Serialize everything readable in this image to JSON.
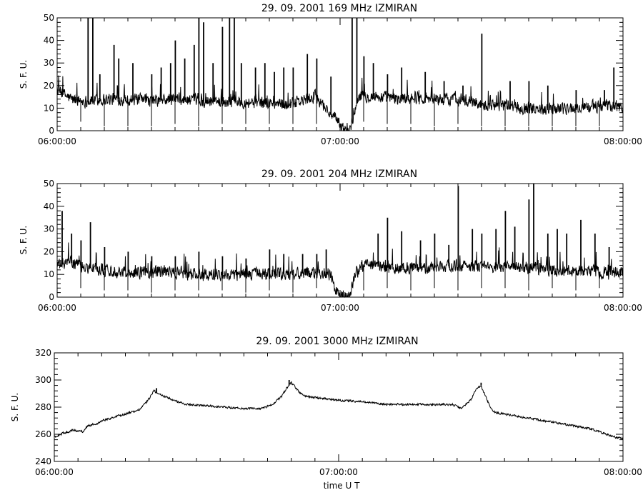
{
  "xlabel": "time   U T",
  "chart_data": [
    {
      "type": "line",
      "title": "29.  09. 2001    169 MHz    IZMIRAN",
      "ylabel": "S. F. U.",
      "x_tick_labels": [
        "06:00:00",
        "07:00:00",
        "08:00:00"
      ],
      "xlim_minutes": [
        0,
        120
      ],
      "ylim": [
        0,
        50
      ],
      "y_ticks": [
        0,
        10,
        20,
        30,
        40,
        50
      ],
      "baseline": [
        [
          0,
          18
        ],
        [
          3,
          14
        ],
        [
          6,
          13
        ],
        [
          10,
          14
        ],
        [
          15,
          14
        ],
        [
          20,
          13
        ],
        [
          25,
          14
        ],
        [
          30,
          13
        ],
        [
          35,
          13
        ],
        [
          40,
          13
        ],
        [
          45,
          12
        ],
        [
          50,
          12
        ],
        [
          55,
          15
        ],
        [
          59,
          5
        ],
        [
          61,
          0
        ],
        [
          62,
          0
        ],
        [
          64,
          16
        ],
        [
          68,
          15
        ],
        [
          72,
          14
        ],
        [
          76,
          15
        ],
        [
          80,
          14
        ],
        [
          85,
          14
        ],
        [
          90,
          12
        ],
        [
          95,
          11
        ],
        [
          100,
          10
        ],
        [
          105,
          10
        ],
        [
          110,
          10
        ],
        [
          115,
          11
        ],
        [
          120,
          11
        ]
      ],
      "noise": 2.5,
      "spikes": [
        [
          6.5,
          50
        ],
        [
          7.5,
          50
        ],
        [
          9,
          25
        ],
        [
          12,
          38
        ],
        [
          13,
          32
        ],
        [
          16,
          30
        ],
        [
          20,
          25
        ],
        [
          22,
          28
        ],
        [
          24,
          30
        ],
        [
          25,
          40
        ],
        [
          27,
          32
        ],
        [
          29,
          38
        ],
        [
          30,
          50
        ],
        [
          31,
          48
        ],
        [
          33,
          30
        ],
        [
          35,
          46
        ],
        [
          36.5,
          50
        ],
        [
          37.5,
          50
        ],
        [
          39,
          30
        ],
        [
          42,
          28
        ],
        [
          44,
          30
        ],
        [
          46,
          26
        ],
        [
          48,
          28
        ],
        [
          50,
          28
        ],
        [
          53,
          34
        ],
        [
          55,
          32
        ],
        [
          58,
          24
        ],
        [
          62.5,
          50
        ],
        [
          63.5,
          50
        ],
        [
          65,
          33
        ],
        [
          67,
          30
        ],
        [
          70,
          25
        ],
        [
          73,
          28
        ],
        [
          78,
          26
        ],
        [
          82,
          22
        ],
        [
          86,
          20
        ],
        [
          90,
          43
        ],
        [
          96,
          22
        ],
        [
          100,
          22
        ],
        [
          104,
          20
        ],
        [
          110,
          18
        ],
        [
          116,
          18
        ],
        [
          118,
          28
        ]
      ],
      "dips": [
        [
          5,
          4
        ],
        [
          10,
          2
        ],
        [
          15,
          2
        ],
        [
          20,
          2
        ],
        [
          25,
          3
        ],
        [
          30,
          2
        ],
        [
          35,
          3
        ],
        [
          40,
          3
        ],
        [
          45,
          3
        ],
        [
          50,
          3
        ],
        [
          55,
          3
        ],
        [
          65,
          4
        ],
        [
          70,
          3
        ],
        [
          75,
          3
        ],
        [
          80,
          2
        ],
        [
          85,
          3
        ],
        [
          90,
          2
        ],
        [
          95,
          2
        ],
        [
          100,
          2
        ],
        [
          105,
          2
        ],
        [
          110,
          2
        ],
        [
          115,
          2
        ]
      ]
    },
    {
      "type": "line",
      "title": "29.  09. 2001    204 MHz    IZMIRAN",
      "ylabel": "S. F. U.",
      "x_tick_labels": [
        "06:00:00",
        "07:00:00",
        "08:00:00"
      ],
      "xlim_minutes": [
        0,
        120
      ],
      "ylim": [
        0,
        50
      ],
      "y_ticks": [
        0,
        10,
        20,
        30,
        40,
        50
      ],
      "baseline": [
        [
          0,
          14
        ],
        [
          3,
          15
        ],
        [
          6,
          13
        ],
        [
          10,
          12
        ],
        [
          15,
          11
        ],
        [
          20,
          11
        ],
        [
          25,
          11
        ],
        [
          30,
          10
        ],
        [
          35,
          10
        ],
        [
          40,
          10
        ],
        [
          45,
          10
        ],
        [
          50,
          10
        ],
        [
          55,
          11
        ],
        [
          58,
          10
        ],
        [
          59,
          3
        ],
        [
          60,
          0
        ],
        [
          62,
          0
        ],
        [
          63,
          10
        ],
        [
          65,
          14
        ],
        [
          70,
          13
        ],
        [
          75,
          13
        ],
        [
          80,
          13
        ],
        [
          85,
          14
        ],
        [
          90,
          13
        ],
        [
          95,
          13
        ],
        [
          100,
          13
        ],
        [
          105,
          12
        ],
        [
          110,
          12
        ],
        [
          115,
          11
        ],
        [
          120,
          11
        ]
      ],
      "noise": 2.5,
      "spikes": [
        [
          1,
          38
        ],
        [
          3,
          28
        ],
        [
          5,
          25
        ],
        [
          7,
          33
        ],
        [
          10,
          22
        ],
        [
          15,
          20
        ],
        [
          20,
          18
        ],
        [
          25,
          18
        ],
        [
          30,
          20
        ],
        [
          35,
          18
        ],
        [
          40,
          17
        ],
        [
          45,
          21
        ],
        [
          48,
          19
        ],
        [
          52,
          19
        ],
        [
          55,
          19
        ],
        [
          57,
          21
        ],
        [
          68,
          28
        ],
        [
          70,
          35
        ],
        [
          73,
          29
        ],
        [
          77,
          25
        ],
        [
          80,
          28
        ],
        [
          83,
          23
        ],
        [
          85,
          49
        ],
        [
          88,
          30
        ],
        [
          90,
          28
        ],
        [
          93,
          30
        ],
        [
          95,
          38
        ],
        [
          97,
          31
        ],
        [
          100,
          43
        ],
        [
          101,
          50
        ],
        [
          104,
          28
        ],
        [
          106,
          30
        ],
        [
          108,
          28
        ],
        [
          111,
          34
        ],
        [
          114,
          28
        ],
        [
          117,
          22
        ]
      ],
      "dips": [
        [
          5,
          4
        ],
        [
          10,
          3
        ],
        [
          15,
          3
        ],
        [
          20,
          2
        ],
        [
          25,
          3
        ],
        [
          30,
          3
        ],
        [
          35,
          3
        ],
        [
          40,
          2
        ],
        [
          45,
          3
        ],
        [
          50,
          2
        ],
        [
          55,
          4
        ],
        [
          65,
          3
        ],
        [
          70,
          4
        ],
        [
          75,
          3
        ],
        [
          80,
          4
        ],
        [
          85,
          3
        ],
        [
          90,
          4
        ],
        [
          95,
          4
        ],
        [
          100,
          3
        ],
        [
          105,
          4
        ],
        [
          110,
          3
        ],
        [
          115,
          4
        ]
      ]
    },
    {
      "type": "line",
      "title": "29.  09. 2001    3000 MHz    IZMIRAN",
      "ylabel": "S. F. U.",
      "x_tick_labels": [
        "06:00:00",
        "07:00:00",
        "08:00:00"
      ],
      "xlim_minutes": [
        0,
        120
      ],
      "ylim": [
        240,
        320
      ],
      "y_ticks": [
        240,
        260,
        280,
        300,
        320
      ],
      "baseline": [
        [
          0,
          258
        ],
        [
          2,
          261
        ],
        [
          4,
          263
        ],
        [
          6,
          262
        ],
        [
          7,
          266
        ],
        [
          9,
          268
        ],
        [
          10,
          270
        ],
        [
          12,
          272
        ],
        [
          14,
          274
        ],
        [
          16,
          276
        ],
        [
          18,
          278
        ],
        [
          19,
          282
        ],
        [
          20,
          286
        ],
        [
          21,
          292
        ],
        [
          22,
          290
        ],
        [
          23,
          288
        ],
        [
          24,
          287
        ],
        [
          26,
          284
        ],
        [
          28,
          282
        ],
        [
          32,
          281
        ],
        [
          36,
          280
        ],
        [
          40,
          279
        ],
        [
          44,
          279
        ],
        [
          46,
          282
        ],
        [
          48,
          288
        ],
        [
          49,
          294
        ],
        [
          50,
          298
        ],
        [
          51,
          294
        ],
        [
          52,
          290
        ],
        [
          53,
          288
        ],
        [
          55,
          287
        ],
        [
          60,
          285
        ],
        [
          65,
          284
        ],
        [
          70,
          282
        ],
        [
          75,
          282
        ],
        [
          80,
          282
        ],
        [
          84,
          282
        ],
        [
          86,
          279
        ],
        [
          88,
          286
        ],
        [
          89,
          293
        ],
        [
          90,
          296
        ],
        [
          91,
          288
        ],
        [
          92,
          280
        ],
        [
          93,
          276
        ],
        [
          95,
          275
        ],
        [
          100,
          272
        ],
        [
          105,
          269
        ],
        [
          110,
          266
        ],
        [
          113,
          264
        ],
        [
          115,
          262
        ],
        [
          118,
          258
        ],
        [
          120,
          257
        ]
      ],
      "noise": 0.7,
      "spikes": [
        [
          21.5,
          294
        ],
        [
          49.5,
          300
        ],
        [
          90,
          298
        ]
      ],
      "dips": []
    }
  ]
}
